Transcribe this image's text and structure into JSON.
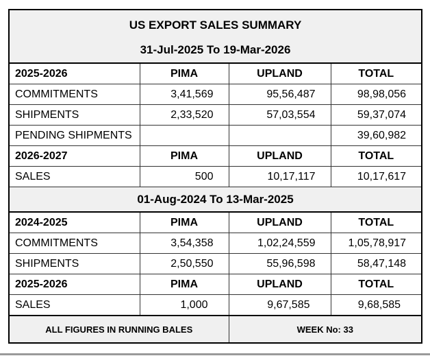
{
  "title": "US EXPORT SALES SUMMARY",
  "period1": {
    "date_range": "31-Jul-2025 To 19-Mar-2026",
    "section_a": {
      "header": [
        "2025-2026",
        "PIMA",
        "UPLAND",
        "TOTAL"
      ],
      "rows": [
        [
          "COMMITMENTS",
          "3,41,569",
          "95,56,487",
          "98,98,056"
        ],
        [
          "SHIPMENTS",
          "2,33,520",
          "57,03,554",
          "59,37,074"
        ],
        [
          "PENDING SHIPMENTS",
          "",
          "",
          "39,60,982"
        ]
      ]
    },
    "section_b": {
      "header": [
        "2026-2027",
        "PIMA",
        "UPLAND",
        "TOTAL"
      ],
      "rows": [
        [
          "SALES",
          "500",
          "10,17,117",
          "10,17,617"
        ]
      ]
    }
  },
  "period2": {
    "date_range": "01-Aug-2024 To 13-Mar-2025",
    "section_a": {
      "header": [
        "2024-2025",
        "PIMA",
        "UPLAND",
        "TOTAL"
      ],
      "rows": [
        [
          "COMMITMENTS",
          "3,54,358",
          "1,02,24,559",
          "1,05,78,917"
        ],
        [
          "SHIPMENTS",
          "2,50,550",
          "55,96,598",
          "58,47,148"
        ]
      ]
    },
    "section_b": {
      "header": [
        "2025-2026",
        "PIMA",
        "UPLAND",
        "TOTAL"
      ],
      "rows": [
        [
          "SALES",
          "1,000",
          "9,67,585",
          "9,68,585"
        ]
      ]
    }
  },
  "footer": {
    "note": "ALL FIGURES IN RUNNING BALES",
    "week": "WEEK No: 33"
  }
}
